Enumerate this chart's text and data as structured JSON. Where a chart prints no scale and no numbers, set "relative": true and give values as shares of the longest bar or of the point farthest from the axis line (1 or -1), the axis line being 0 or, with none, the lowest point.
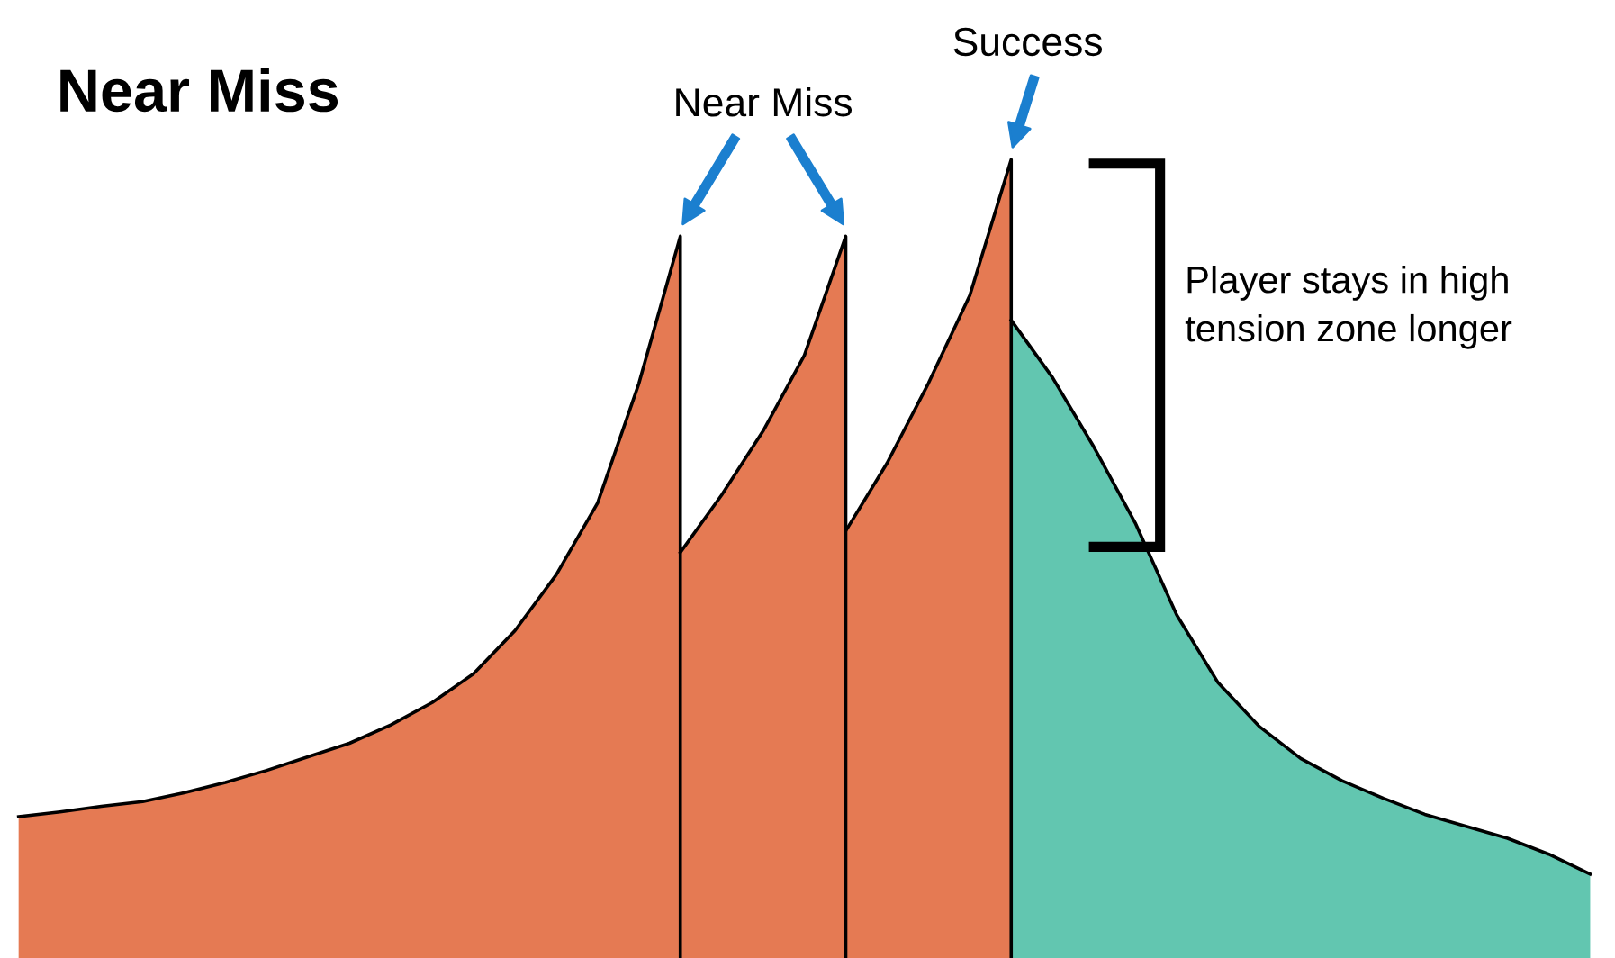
{
  "chart_data": {
    "type": "area",
    "title": "Near Miss",
    "relative": true,
    "grid": false,
    "categories": [
      null,
      null,
      null,
      null,
      null,
      null,
      null,
      null,
      null,
      null,
      null,
      null,
      null,
      null,
      null,
      null,
      null,
      null,
      null,
      null,
      null,
      null,
      null,
      null,
      null,
      null,
      null,
      null,
      null,
      null,
      null,
      null,
      null,
      null,
      null,
      null,
      null,
      null,
      null
    ],
    "series": [
      {
        "color": "#e57a53",
        "values": [
          0.177,
          0.183,
          0.19,
          0.196,
          0.207,
          0.22,
          0.235,
          0.252,
          0.269,
          0.292,
          0.32,
          0.356,
          0.41,
          0.48,
          0.57,
          0.72,
          0.904,
          null,
          null,
          null,
          null,
          null,
          null,
          null,
          null,
          null,
          null,
          null,
          null,
          null,
          null,
          null,
          null,
          null,
          null,
          null,
          null,
          null,
          null
        ]
      },
      {
        "color": "#e57a53",
        "values": [
          null,
          null,
          null,
          null,
          null,
          null,
          null,
          null,
          null,
          null,
          null,
          null,
          null,
          null,
          null,
          null,
          0.508,
          0.58,
          0.66,
          0.755,
          0.904,
          null,
          null,
          null,
          null,
          null,
          null,
          null,
          null,
          null,
          null,
          null,
          null,
          null,
          null,
          null,
          null,
          null,
          null
        ]
      },
      {
        "color": "#e57a53",
        "values": [
          null,
          null,
          null,
          null,
          null,
          null,
          null,
          null,
          null,
          null,
          null,
          null,
          null,
          null,
          null,
          null,
          null,
          null,
          null,
          null,
          0.535,
          0.62,
          0.72,
          0.83,
          1.0,
          null,
          null,
          null,
          null,
          null,
          null,
          null,
          null,
          null,
          null,
          null,
          null,
          null,
          null
        ]
      },
      {
        "color": "#62c6b0",
        "values": [
          null,
          null,
          null,
          null,
          null,
          null,
          null,
          null,
          null,
          null,
          null,
          null,
          null,
          null,
          null,
          null,
          null,
          null,
          null,
          null,
          null,
          null,
          null,
          null,
          0.799,
          0.727,
          0.64,
          0.545,
          0.43,
          0.345,
          0.29,
          0.25,
          0.222,
          0.2,
          0.18,
          0.165,
          0.15,
          0.13,
          0.105
        ]
      }
    ],
    "annotations": [
      "Near Miss",
      "Success",
      "Player stays in high tension zone longer"
    ]
  }
}
